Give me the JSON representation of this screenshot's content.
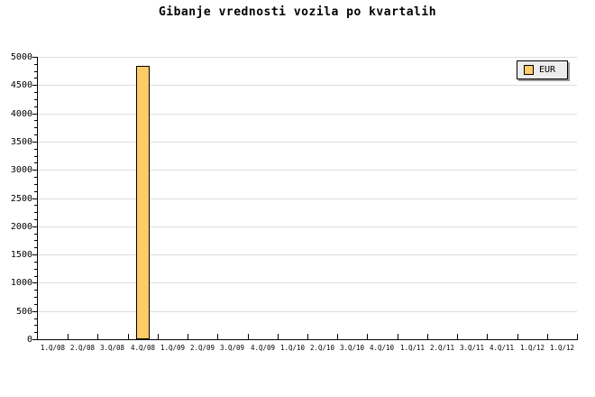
{
  "title": "Gibanje vrednosti vozila po kvartalih",
  "legend": {
    "label": "EUR"
  },
  "colors": {
    "background": "#FFFFFF",
    "bar_fill": "#FFCC66",
    "bar_border": "#000000",
    "gridline": "#DDDDDD",
    "axis": "#000000",
    "text": "#000000",
    "legend_bg": "#EDEDED",
    "legend_shadow": "#999999"
  },
  "chart_data": {
    "type": "bar",
    "title": "Gibanje vrednosti vozila po kvartalih",
    "categories": [
      "1.Q/08",
      "2.Q/08",
      "3.Q/08",
      "4.Q/08",
      "1.Q/09",
      "2.Q/09",
      "3.Q/09",
      "4.Q/09",
      "1.Q/10",
      "2.Q/10",
      "3.Q/10",
      "4.Q/10",
      "1.Q/11",
      "2.Q/11",
      "3.Q/11",
      "4.Q/11",
      "1.Q/12",
      "1.Q/12"
    ],
    "series": [
      {
        "name": "EUR",
        "values": [
          null,
          null,
          null,
          4840,
          null,
          null,
          null,
          null,
          null,
          null,
          null,
          null,
          null,
          null,
          null,
          null,
          null,
          null
        ]
      }
    ],
    "xlabel": "",
    "ylabel": "",
    "ylim": [
      0,
      5000
    ],
    "ytick_major_step": 500,
    "ytick_minor_step": 125,
    "y_tick_labels": [
      "0",
      "500",
      "1000",
      "1500",
      "2000",
      "2500",
      "3000",
      "3500",
      "4000",
      "4500",
      "5000"
    ],
    "grid": "horizontal-major",
    "legend_position": "top-right",
    "legend_entries": [
      "EUR"
    ]
  }
}
